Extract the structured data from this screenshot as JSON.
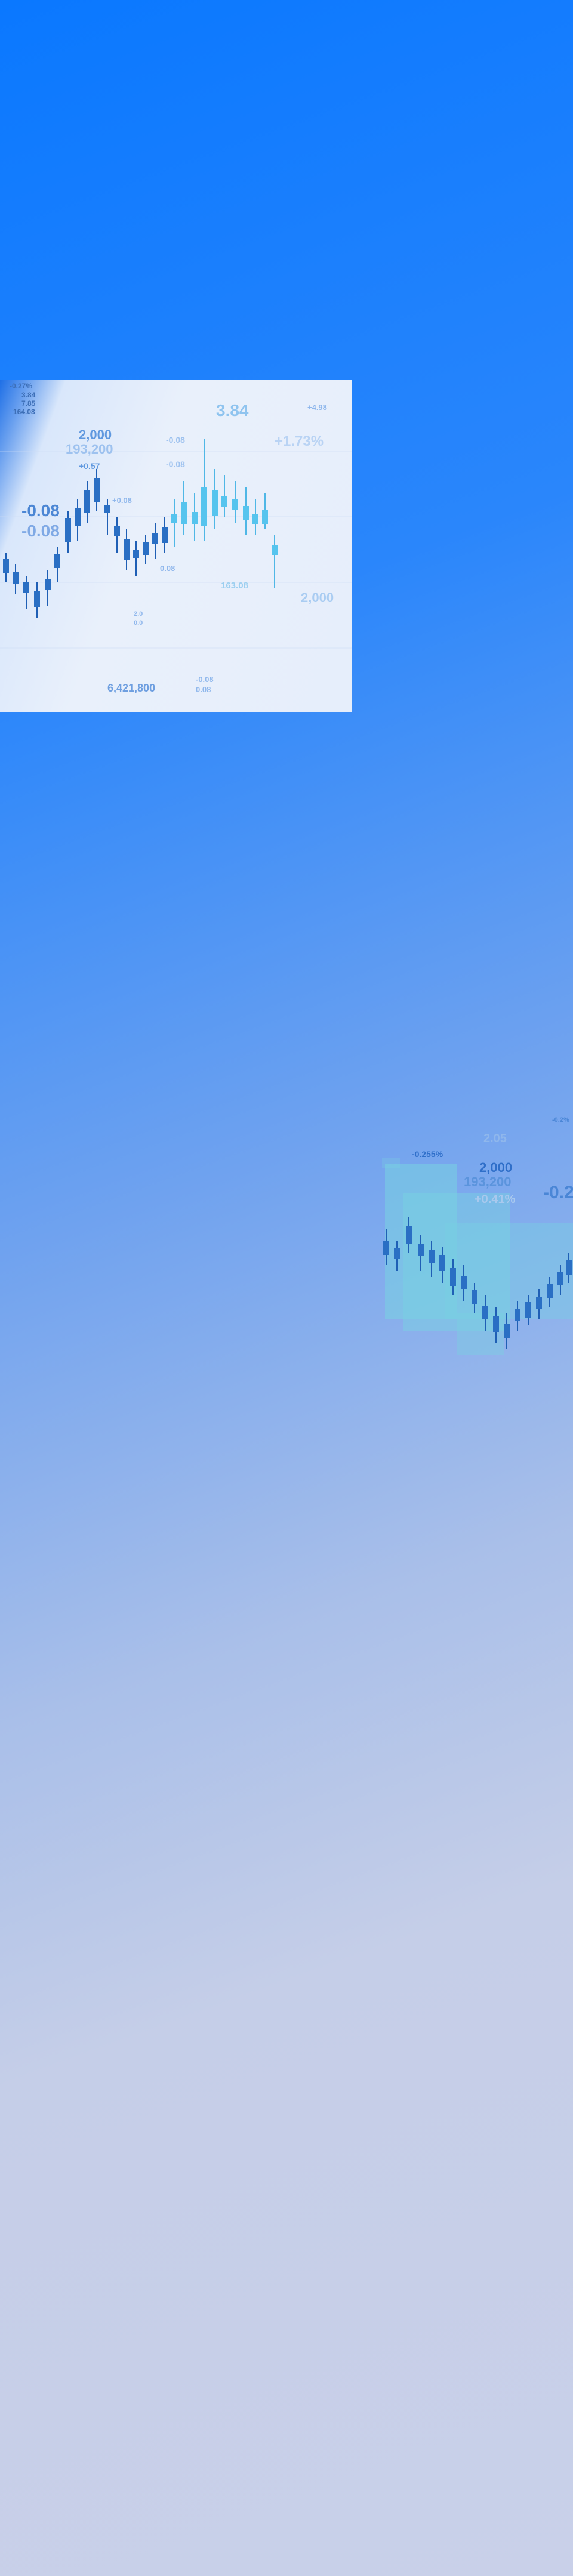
{
  "hero_chart": {
    "image_name": "stock-candlestick-chart-image",
    "labels": {
      "top_left_1": "-0.27%",
      "top_left_2": "3.84",
      "top_left_3": "7.85",
      "top_left_4": "164.08",
      "big_price": "3.84",
      "sec_2000": "2,000",
      "sec_193200": "193,200",
      "delta_1": "+0.57",
      "delta_2": "-0.08",
      "delta_3": "-0.08",
      "left_neg": "-0.08",
      "left_neg_2": "-0.08",
      "right_pct": "+1.73%",
      "right_2000": "2,000",
      "right_small": "+4.98",
      "bottom_total": "6,421,800",
      "bottom_a": "-0.08",
      "bottom_b": "0.08",
      "mid_a": "+0.08",
      "mid_b": "0.08",
      "mid_c": "163.08",
      "tiny_a": "2.0",
      "tiny_b": "0.0"
    }
  },
  "side_chart": {
    "image_name": "stock-candlestick-mosaic-image",
    "labels": {
      "top_small": "-0.2%",
      "val_205": "2.05",
      "pct_neg": "-0.255%",
      "val_2000": "2,000",
      "val_193200": "193,200",
      "pct_pos": "+0.41%",
      "big_neg": "-0.2"
    }
  }
}
